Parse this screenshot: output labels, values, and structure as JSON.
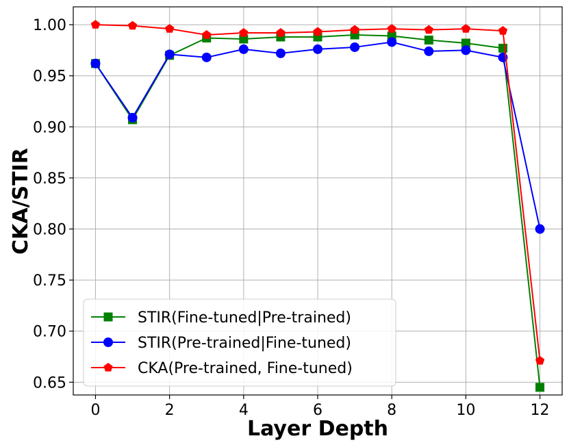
{
  "chart_data": {
    "type": "line",
    "title": "",
    "xlabel": "Layer Depth",
    "ylabel": "CKA/STIR",
    "xlim": [
      -0.6,
      12.6
    ],
    "ylim": [
      0.6375,
      1.0175
    ],
    "xticks": [
      0,
      2,
      4,
      6,
      8,
      10,
      12
    ],
    "yticks": [
      0.65,
      0.7,
      0.75,
      0.8,
      0.85,
      0.9,
      0.95,
      1.0
    ],
    "ytick_labels": [
      "0.65",
      "0.70",
      "0.75",
      "0.80",
      "0.85",
      "0.90",
      "0.95",
      "1.00"
    ],
    "grid": true,
    "legend_position": "lower-left",
    "x": [
      0,
      1,
      2,
      3,
      4,
      5,
      6,
      7,
      8,
      9,
      10,
      11,
      12
    ],
    "series": [
      {
        "name": "STIR(Fine-tuned|Pre-trained)",
        "color": "#008000",
        "marker": "square",
        "values": [
          0.962,
          0.907,
          0.97,
          0.987,
          0.986,
          0.988,
          0.988,
          0.99,
          0.989,
          0.985,
          0.982,
          0.977,
          0.645
        ]
      },
      {
        "name": "STIR(Pre-trained|Fine-tuned)",
        "color": "#0000ff",
        "marker": "circle",
        "values": [
          0.962,
          0.909,
          0.971,
          0.968,
          0.976,
          0.972,
          0.976,
          0.978,
          0.983,
          0.974,
          0.975,
          0.968,
          0.8
        ]
      },
      {
        "name": "CKA(Pre-trained, Fine-tuned)",
        "color": "#ff0000",
        "marker": "pentagon",
        "values": [
          1.0,
          0.999,
          0.996,
          0.99,
          0.992,
          0.992,
          0.993,
          0.995,
          0.996,
          0.995,
          0.996,
          0.994,
          0.671
        ]
      }
    ]
  }
}
